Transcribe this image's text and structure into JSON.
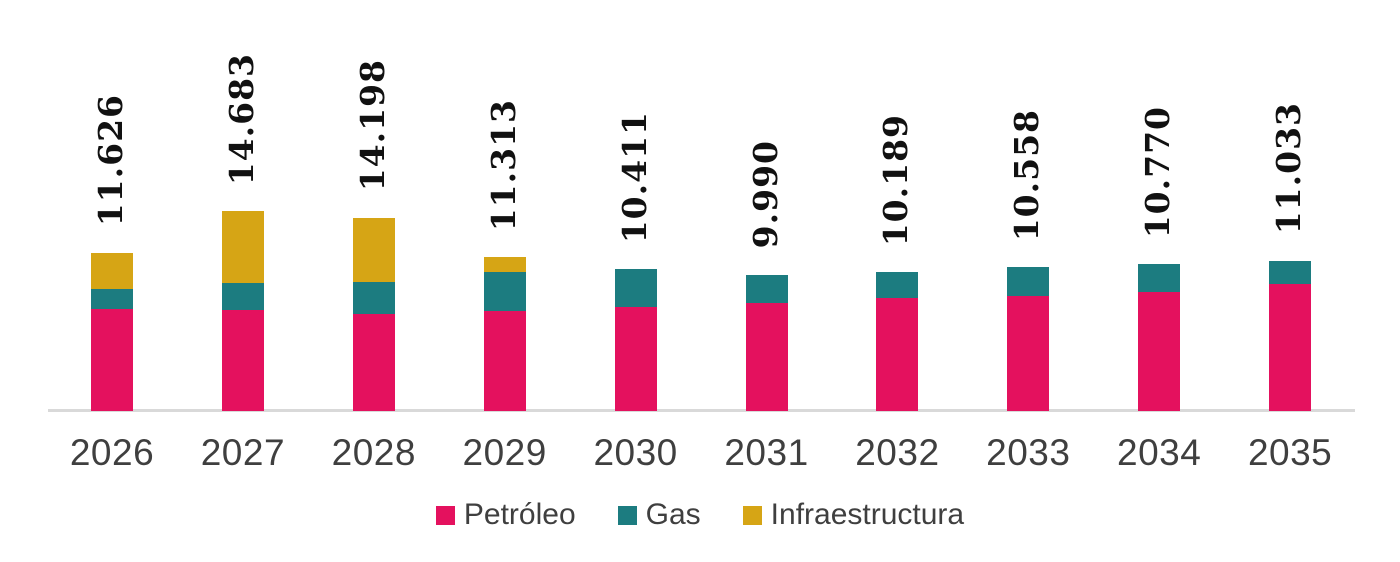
{
  "chart_data": {
    "type": "bar",
    "subtype": "stacked-column",
    "categories": [
      "2026",
      "2027",
      "2028",
      "2029",
      "2030",
      "2031",
      "2032",
      "2033",
      "2034",
      "2035"
    ],
    "series": [
      {
        "name": "Petróleo",
        "color": "#E4115E",
        "values": [
          7500,
          7415,
          7099,
          7372,
          7625,
          7948,
          8283,
          8475,
          8733,
          9353
        ]
      },
      {
        "name": "Gas",
        "color": "#1C7C80",
        "values": [
          1480,
          1963,
          2342,
          2847,
          2786,
          2042,
          1906,
          2083,
          2037,
          1680
        ]
      },
      {
        "name": "Infraestructura",
        "color": "#D6A515",
        "values": [
          2646,
          5305,
          4757,
          1094,
          0,
          0,
          0,
          0,
          0,
          0
        ]
      }
    ],
    "totals_labels": [
      "11.626",
      "14.683",
      "14.198",
      "11.313",
      "10.411",
      "9.990",
      "10.189",
      "10.558",
      "10.770",
      "11.033"
    ],
    "totals_numeric": [
      11626,
      14683,
      14198,
      11313,
      10411,
      9990,
      10189,
      10558,
      10770,
      11033
    ],
    "title": "",
    "xlabel": "",
    "ylabel": "",
    "ylim": [
      0,
      15000
    ],
    "grid": false,
    "legend_position": "bottom-center",
    "value_label_orientation": "rotated-90-bottom-to-top"
  },
  "colors": {
    "background": "#FFFFFF",
    "axis_line": "#D9D9D9",
    "value_label_text": "#111111",
    "tick_label_text": "#3F3F3F"
  }
}
